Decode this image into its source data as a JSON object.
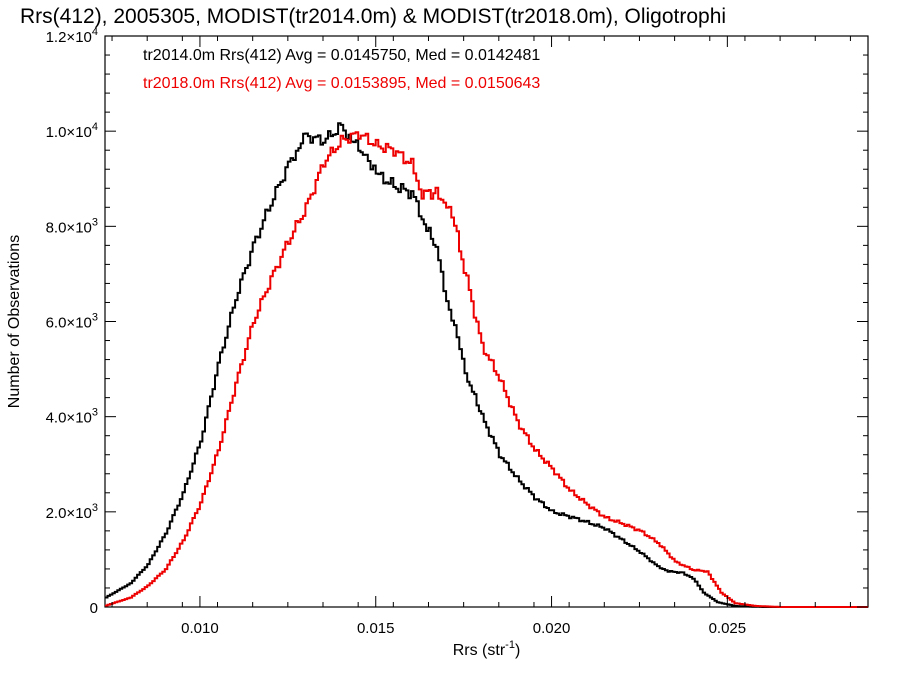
{
  "chart_data": {
    "type": "line",
    "step": true,
    "title": "Rrs(412), 2005305, MODIST(tr2014.0m) & MODIST(tr2018.0m), Oligotrophi",
    "xlabel": "Rrs (str",
    "xlabel_sup": "-1",
    "xlabel_end": ")",
    "ylabel": "Number of Observations",
    "xlim": [
      0.0073,
      0.029
    ],
    "ylim": [
      0,
      12000
    ],
    "grid": false,
    "x_ticks": [
      {
        "value": 0.01,
        "label": "0.010"
      },
      {
        "value": 0.015,
        "label": "0.015"
      },
      {
        "value": 0.02,
        "label": "0.020"
      },
      {
        "value": 0.025,
        "label": "0.025"
      }
    ],
    "y_ticks": [
      {
        "value": 0,
        "mant": "0",
        "exp": ""
      },
      {
        "value": 2000,
        "mant": "2.0",
        "exp": "3"
      },
      {
        "value": 4000,
        "mant": "4.0",
        "exp": "3"
      },
      {
        "value": 6000,
        "mant": "6.0",
        "exp": "3"
      },
      {
        "value": 8000,
        "mant": "8.0",
        "exp": "3"
      },
      {
        "value": 10000,
        "mant": "1.0",
        "exp": "4"
      },
      {
        "value": 12000,
        "mant": "1.2",
        "exp": "4"
      }
    ],
    "legend_position": "top-left",
    "series": [
      {
        "name": "tr2014.0m",
        "color": "#000000",
        "legend": "tr2014.0m Rrs(412) Avg = 0.0145750, Med = 0.0142481",
        "points": [
          [
            0.0073,
            200
          ],
          [
            0.008,
            500
          ],
          [
            0.0085,
            900
          ],
          [
            0.009,
            1550
          ],
          [
            0.0095,
            2400
          ],
          [
            0.01,
            3500
          ],
          [
            0.0105,
            5100
          ],
          [
            0.011,
            6500
          ],
          [
            0.0115,
            7600
          ],
          [
            0.012,
            8500
          ],
          [
            0.0125,
            9300
          ],
          [
            0.0128,
            9700
          ],
          [
            0.013,
            9900
          ],
          [
            0.0135,
            9800
          ],
          [
            0.014,
            10100
          ],
          [
            0.0143,
            9800
          ],
          [
            0.0147,
            9500
          ],
          [
            0.015,
            9100
          ],
          [
            0.0155,
            8850
          ],
          [
            0.016,
            8700
          ],
          [
            0.0163,
            8200
          ],
          [
            0.0167,
            7500
          ],
          [
            0.017,
            6500
          ],
          [
            0.0173,
            5600
          ],
          [
            0.0176,
            4800
          ],
          [
            0.018,
            4000
          ],
          [
            0.0185,
            3200
          ],
          [
            0.019,
            2700
          ],
          [
            0.0195,
            2300
          ],
          [
            0.02,
            2000
          ],
          [
            0.0205,
            1900
          ],
          [
            0.021,
            1780
          ],
          [
            0.0215,
            1650
          ],
          [
            0.022,
            1400
          ],
          [
            0.0225,
            1150
          ],
          [
            0.023,
            850
          ],
          [
            0.0233,
            750
          ],
          [
            0.0237,
            720
          ],
          [
            0.024,
            600
          ],
          [
            0.0243,
            300
          ],
          [
            0.0247,
            100
          ],
          [
            0.0252,
            20
          ],
          [
            0.026,
            0
          ],
          [
            0.029,
            0
          ]
        ]
      },
      {
        "name": "tr2018.0m",
        "color": "#ee0000",
        "legend": "tr2018.0m Rrs(412) Avg = 0.0153895, Med = 0.0150643",
        "points": [
          [
            0.0073,
            30
          ],
          [
            0.008,
            200
          ],
          [
            0.0085,
            450
          ],
          [
            0.009,
            800
          ],
          [
            0.0095,
            1400
          ],
          [
            0.01,
            2200
          ],
          [
            0.0105,
            3300
          ],
          [
            0.011,
            4700
          ],
          [
            0.0115,
            6000
          ],
          [
            0.012,
            6900
          ],
          [
            0.0125,
            7700
          ],
          [
            0.013,
            8400
          ],
          [
            0.0135,
            9350
          ],
          [
            0.014,
            9800
          ],
          [
            0.0145,
            9950
          ],
          [
            0.015,
            9700
          ],
          [
            0.0155,
            9600
          ],
          [
            0.016,
            9300
          ],
          [
            0.0163,
            8700
          ],
          [
            0.0167,
            8700
          ],
          [
            0.017,
            8500
          ],
          [
            0.0173,
            7800
          ],
          [
            0.0175,
            7100
          ],
          [
            0.018,
            5500
          ],
          [
            0.0185,
            4800
          ],
          [
            0.019,
            3900
          ],
          [
            0.0195,
            3300
          ],
          [
            0.02,
            2900
          ],
          [
            0.0205,
            2450
          ],
          [
            0.021,
            2150
          ],
          [
            0.0215,
            1880
          ],
          [
            0.022,
            1750
          ],
          [
            0.0225,
            1600
          ],
          [
            0.023,
            1350
          ],
          [
            0.0235,
            950
          ],
          [
            0.024,
            780
          ],
          [
            0.0244,
            750
          ],
          [
            0.0248,
            300
          ],
          [
            0.0252,
            80
          ],
          [
            0.0258,
            20
          ],
          [
            0.0265,
            0
          ],
          [
            0.029,
            0
          ]
        ]
      }
    ]
  }
}
